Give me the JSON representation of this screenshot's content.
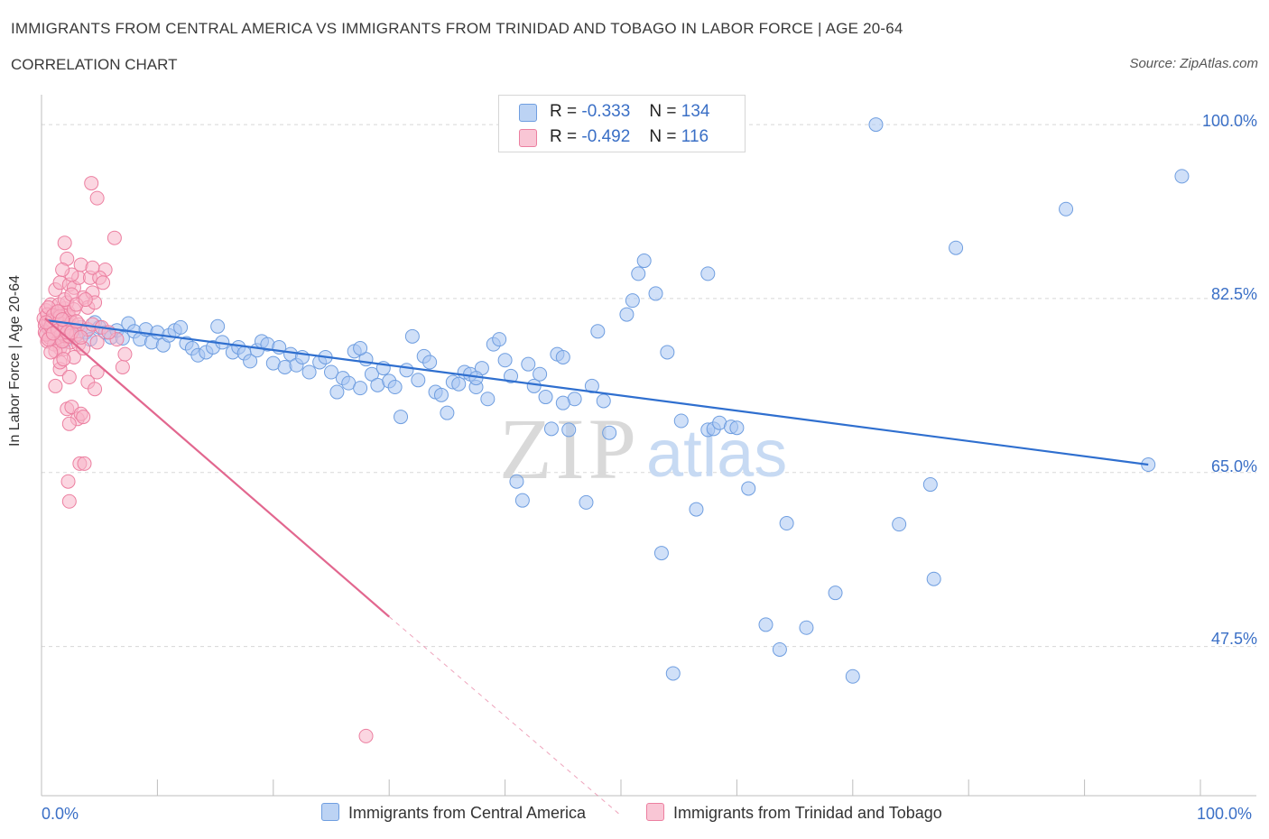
{
  "header": {
    "title": "IMMIGRANTS FROM CENTRAL AMERICA VS IMMIGRANTS FROM TRINIDAD AND TOBAGO IN LABOR FORCE | AGE 20-64",
    "subtitle": "CORRELATION CHART",
    "source": "Source: ZipAtlas.com"
  },
  "legend": {
    "rows": [
      {
        "r_label": "R =",
        "r_value": "-0.333",
        "n_label": "N =",
        "n_value": "134"
      },
      {
        "r_label": "R =",
        "r_value": "-0.492",
        "n_label": "N =",
        "n_value": "116"
      }
    ]
  },
  "bottom_legend": {
    "items": [
      "Immigrants from Central America",
      "Immigrants from Trinidad and Tobago"
    ]
  },
  "axis_labels": {
    "x_left": "0.0%",
    "x_right": "100.0%",
    "y_ticks": [
      "100.0%",
      "82.5%",
      "65.0%",
      "47.5%"
    ],
    "ylabel": "In Labor Force | Age 20-64"
  },
  "watermark": {
    "zip": "ZIP",
    "atlas": "atlas"
  },
  "colors": {
    "blue_fill": "#a9c7f2",
    "blue_stroke": "#6f9ee0",
    "blue_line": "#2f6fcf",
    "pink_fill": "#f7b4c8",
    "pink_stroke": "#ec7fa0",
    "pink_line": "#e2678f",
    "grid": "#d8d8d8",
    "tick_text": "#3a6fc6"
  },
  "chart_data": {
    "type": "scatter",
    "xlim": [
      0,
      100
    ],
    "ylim": [
      32.5,
      103
    ],
    "y_ticks": [
      100.0,
      82.5,
      65.0,
      47.5
    ],
    "grid": true,
    "legend_position": "top-center",
    "series": [
      {
        "name": "Immigrants from Central America",
        "color": "#a9c7f2",
        "R": -0.333,
        "N": 134,
        "trend": {
          "x": [
            0.5,
            95.5
          ],
          "y": [
            80.3,
            65.8
          ]
        },
        "points": [
          [
            0.6,
            79.5
          ],
          [
            0.8,
            79
          ],
          [
            1,
            79.8
          ],
          [
            1.2,
            78.5
          ],
          [
            1.5,
            80
          ],
          [
            1.8,
            79.2
          ],
          [
            2,
            78.2
          ],
          [
            2.3,
            79.9
          ],
          [
            2.7,
            79.4
          ],
          [
            3,
            78.8
          ],
          [
            3.4,
            79.6
          ],
          [
            3.8,
            79.1
          ],
          [
            4.2,
            78.4
          ],
          [
            4.6,
            80.1
          ],
          [
            5,
            79.6
          ],
          [
            5.5,
            79.1
          ],
          [
            6,
            78.6
          ],
          [
            6.5,
            79.3
          ],
          [
            7,
            78.5
          ],
          [
            7.5,
            80
          ],
          [
            8,
            79.2
          ],
          [
            8.5,
            78.4
          ],
          [
            9,
            79.4
          ],
          [
            9.5,
            78.1
          ],
          [
            10,
            79.1
          ],
          [
            10.5,
            77.8
          ],
          [
            11,
            78.8
          ],
          [
            11.5,
            79.3
          ],
          [
            12,
            79.6
          ],
          [
            12.5,
            78
          ],
          [
            13,
            77.5
          ],
          [
            13.5,
            76.8
          ],
          [
            14.2,
            77.1
          ],
          [
            14.8,
            77.6
          ],
          [
            15.2,
            79.7
          ],
          [
            15.6,
            78.1
          ],
          [
            16.5,
            77.1
          ],
          [
            17,
            77.6
          ],
          [
            17.5,
            77
          ],
          [
            18,
            76.2
          ],
          [
            18.6,
            77.3
          ],
          [
            19,
            78.2
          ],
          [
            19.5,
            77.9
          ],
          [
            20,
            76
          ],
          [
            20.5,
            77.6
          ],
          [
            21,
            75.6
          ],
          [
            21.5,
            76.9
          ],
          [
            22,
            75.8
          ],
          [
            22.5,
            76.6
          ],
          [
            23.1,
            75.1
          ],
          [
            24,
            76.1
          ],
          [
            24.5,
            76.6
          ],
          [
            25,
            75.1
          ],
          [
            25.5,
            73.1
          ],
          [
            26,
            74.5
          ],
          [
            26.5,
            74
          ],
          [
            27,
            77.2
          ],
          [
            27.5,
            73.5
          ],
          [
            28,
            76.4
          ],
          [
            28.5,
            74.9
          ],
          [
            29,
            73.8
          ],
          [
            29.5,
            75.5
          ],
          [
            30,
            74.2
          ],
          [
            30.5,
            73.6
          ],
          [
            31,
            70.6
          ],
          [
            31.5,
            75.3
          ],
          [
            32,
            78.7
          ],
          [
            32.5,
            74.3
          ],
          [
            33,
            76.7
          ],
          [
            33.5,
            76.1
          ],
          [
            34,
            73.1
          ],
          [
            34.5,
            72.8
          ],
          [
            35,
            71
          ],
          [
            35.5,
            74.1
          ],
          [
            36,
            73.9
          ],
          [
            36.5,
            75.1
          ],
          [
            37,
            74.9
          ],
          [
            37.5,
            73.6
          ],
          [
            38,
            75.5
          ],
          [
            38.5,
            72.4
          ],
          [
            39,
            77.9
          ],
          [
            39.5,
            78.4
          ],
          [
            40,
            76.3
          ],
          [
            40.5,
            74.7
          ],
          [
            41,
            64.1
          ],
          [
            41.5,
            62.2
          ],
          [
            42,
            75.9
          ],
          [
            42.5,
            73.7
          ],
          [
            43,
            74.9
          ],
          [
            43.5,
            72.6
          ],
          [
            44,
            69.4
          ],
          [
            44.5,
            76.9
          ],
          [
            45,
            76.6
          ],
          [
            45.5,
            69.3
          ],
          [
            46,
            72.4
          ],
          [
            47,
            62
          ],
          [
            47.5,
            73.7
          ],
          [
            48,
            79.2
          ],
          [
            48.5,
            72.2
          ],
          [
            49,
            69
          ],
          [
            50.5,
            80.9
          ],
          [
            51,
            82.3
          ],
          [
            51.5,
            85
          ],
          [
            52,
            86.3
          ],
          [
            53,
            83
          ],
          [
            53.5,
            56.9
          ],
          [
            54,
            77.1
          ],
          [
            54.5,
            44.8
          ],
          [
            55.2,
            70.2
          ],
          [
            56.5,
            61.3
          ],
          [
            57.5,
            69.3
          ],
          [
            58,
            69.4
          ],
          [
            58.5,
            70
          ],
          [
            59.5,
            69.6
          ],
          [
            60,
            69.5
          ],
          [
            61,
            63.4
          ],
          [
            62.5,
            49.7
          ],
          [
            63.7,
            47.2
          ],
          [
            64.3,
            59.9
          ],
          [
            66,
            49.4
          ],
          [
            68.5,
            52.9
          ],
          [
            70,
            44.5
          ],
          [
            72,
            100
          ],
          [
            74,
            59.8
          ],
          [
            76.7,
            63.8
          ],
          [
            77,
            54.3
          ],
          [
            78.9,
            87.6
          ],
          [
            88.4,
            91.5
          ],
          [
            98.4,
            94.8
          ],
          [
            95.5,
            65.8
          ],
          [
            57.5,
            85
          ],
          [
            45,
            72
          ],
          [
            37.5,
            74.5
          ],
          [
            27.5,
            77.5
          ]
        ]
      },
      {
        "name": "Immigrants from Trinidad and Tobago",
        "color": "#f7b4c8",
        "R": -0.492,
        "N": 116,
        "trend": {
          "x": [
            0.3,
            30
          ],
          "y": [
            80.5,
            50.5
          ]
        },
        "trend_dashed_to": {
          "x": [
            30,
            50
          ],
          "y": [
            50.5,
            30.5
          ]
        },
        "points": [
          [
            0.2,
            80.5
          ],
          [
            0.3,
            79.8
          ],
          [
            0.4,
            81.3
          ],
          [
            0.5,
            78.2
          ],
          [
            0.6,
            80.1
          ],
          [
            0.7,
            79.4
          ],
          [
            0.8,
            81.9
          ],
          [
            0.9,
            78.9
          ],
          [
            1,
            80.6
          ],
          [
            1.1,
            79.6
          ],
          [
            1.2,
            81.1
          ],
          [
            1.3,
            78.6
          ],
          [
            1.4,
            80.2
          ],
          [
            1.5,
            79.1
          ],
          [
            1.6,
            77.5
          ],
          [
            1.7,
            80.9
          ],
          [
            1.8,
            79.3
          ],
          [
            1.9,
            78.4
          ],
          [
            2,
            81.5
          ],
          [
            2.1,
            80
          ],
          [
            2.2,
            78.8
          ],
          [
            2.3,
            79.9
          ],
          [
            2.4,
            80.6
          ],
          [
            2.5,
            78.1
          ],
          [
            0.3,
            79.1
          ],
          [
            0.5,
            80.9
          ],
          [
            0.7,
            78.6
          ],
          [
            0.9,
            80.3
          ],
          [
            1.1,
            77.9
          ],
          [
            1.3,
            80.4
          ],
          [
            1.5,
            81.9
          ],
          [
            1.7,
            79
          ],
          [
            1.9,
            77.4
          ],
          [
            2.1,
            79.5
          ],
          [
            2.3,
            81.1
          ],
          [
            0.4,
            78.9
          ],
          [
            0.6,
            81.6
          ],
          [
            0.8,
            79.7
          ],
          [
            1,
            80.8
          ],
          [
            1.2,
            77.2
          ],
          [
            1.4,
            79.3
          ],
          [
            1.6,
            80.7
          ],
          [
            1.8,
            78.2
          ],
          [
            2,
            79.6
          ],
          [
            2.2,
            82.1
          ],
          [
            2.4,
            78.7
          ],
          [
            2.6,
            80.1
          ],
          [
            2.8,
            81.4
          ],
          [
            3,
            78.9
          ],
          [
            3.2,
            79.9
          ],
          [
            1.2,
            83.4
          ],
          [
            1.6,
            84.1
          ],
          [
            2,
            82.4
          ],
          [
            2.4,
            83.9
          ],
          [
            2.8,
            83.6
          ],
          [
            3.2,
            84.6
          ],
          [
            3.6,
            82.6
          ],
          [
            4,
            81.6
          ],
          [
            4.4,
            83.1
          ],
          [
            2.2,
            86.5
          ],
          [
            2.6,
            84.9
          ],
          [
            3.4,
            85.9
          ],
          [
            4.2,
            84.6
          ],
          [
            4.6,
            82.1
          ],
          [
            5.5,
            85.4
          ],
          [
            1.8,
            85.4
          ],
          [
            2.6,
            82.9
          ],
          [
            3,
            81.9
          ],
          [
            3.8,
            82.4
          ],
          [
            5,
            84.6
          ],
          [
            4.4,
            85.6
          ],
          [
            5.3,
            84.1
          ],
          [
            2,
            88.1
          ],
          [
            6.3,
            88.6
          ],
          [
            4.3,
            94.1
          ],
          [
            4.8,
            92.6
          ],
          [
            1.2,
            73.7
          ],
          [
            1.6,
            75.4
          ],
          [
            2.4,
            74.6
          ],
          [
            4,
            74.1
          ],
          [
            4.6,
            73.4
          ],
          [
            4.8,
            75.1
          ],
          [
            2.2,
            71.4
          ],
          [
            2.6,
            71.6
          ],
          [
            3.1,
            70.4
          ],
          [
            3.4,
            70.9
          ],
          [
            3.6,
            70.6
          ],
          [
            2.4,
            69.9
          ],
          [
            3.3,
            65.9
          ],
          [
            3.7,
            65.9
          ],
          [
            2.3,
            64.1
          ],
          [
            2.4,
            62.1
          ],
          [
            3.2,
            77.9
          ],
          [
            4,
            79.4
          ],
          [
            4.4,
            79.9
          ],
          [
            5.2,
            79.6
          ],
          [
            6.5,
            78.4
          ],
          [
            7,
            75.6
          ],
          [
            7.2,
            76.9
          ],
          [
            2.8,
            76.6
          ],
          [
            1.6,
            76.1
          ],
          [
            1.9,
            76.4
          ],
          [
            0.8,
            77.1
          ],
          [
            3.6,
            77.5
          ],
          [
            4.8,
            78.1
          ],
          [
            5.8,
            79.1
          ],
          [
            2.2,
            79.1
          ],
          [
            0.4,
            80.1
          ],
          [
            0.6,
            78.4
          ],
          [
            1,
            79
          ],
          [
            1.4,
            81.2
          ],
          [
            1.8,
            80.4
          ],
          [
            2.6,
            79.1
          ],
          [
            3,
            80.2
          ],
          [
            3.4,
            78.6
          ],
          [
            28,
            38.5
          ]
        ]
      }
    ]
  }
}
